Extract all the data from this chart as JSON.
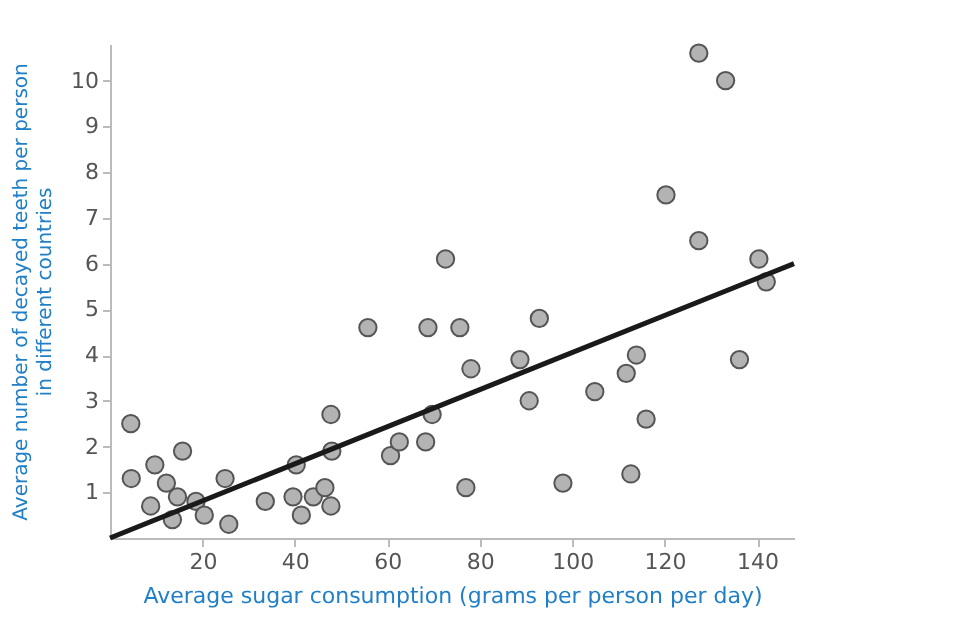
{
  "chart_data": {
    "type": "scatter",
    "xlabel": "Average sugar consumption (grams per person per day)",
    "ylabel": "Average number of decayed teeth per person\nin different countries",
    "xlim": [
      0,
      148
    ],
    "ylim": [
      0,
      10.8
    ],
    "xticks": [
      20,
      40,
      60,
      80,
      100,
      120,
      140
    ],
    "yticks": [
      1,
      2,
      3,
      4,
      5,
      6,
      7,
      8,
      9,
      10
    ],
    "grid": false,
    "marker": "circle",
    "series": [
      {
        "color": "#b3b3b3",
        "x": [
          4.5,
          4.6,
          8.8,
          9.7,
          12.2,
          14.6,
          13.5,
          15.7,
          18.6,
          20.4,
          24.9,
          25.7,
          33.6,
          39.6,
          40.3,
          41.4,
          44,
          46.5,
          47.8,
          48,
          47.8,
          55.8,
          60.7,
          62.6,
          68.3,
          68.8,
          69.7,
          72.6,
          75.7,
          77,
          78.1,
          92.9,
          88.7,
          90.7,
          98,
          104.9,
          111.7,
          113.9,
          112.7,
          116,
          120.3,
          127.4,
          133.2,
          127.4,
          136.2,
          140.4,
          142
        ],
        "values": [
          2.5,
          1.3,
          0.7,
          1.6,
          1.2,
          0.9,
          0.4,
          1.9,
          0.8,
          0.5,
          1.3,
          0.3,
          0.8,
          0.9,
          1.6,
          0.5,
          0.9,
          1.1,
          2.7,
          1.9,
          0.7,
          4.6,
          1.8,
          2.1,
          2.1,
          4.6,
          2.7,
          6.1,
          4.6,
          1.1,
          3.7,
          4.8,
          3.9,
          3.0,
          1.2,
          3.2,
          3.6,
          4.0,
          1.4,
          2.6,
          7.5,
          10.6,
          10.0,
          6.5,
          3.9,
          6.1,
          5.6
        ]
      },
      {
        "type": "line",
        "color": "#1a1a1a",
        "x": [
          0,
          148
        ],
        "values": [
          0,
          6.0
        ],
        "marker": "none"
      }
    ]
  }
}
